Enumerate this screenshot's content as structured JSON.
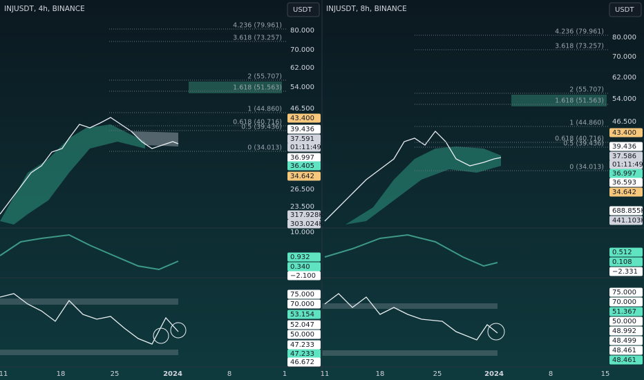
{
  "panels": [
    {
      "title": "INJUSDT, 4h, BINANCE",
      "currency": "USDT",
      "fib_levels": [
        "4.236 (79.961)",
        "3.618 (73.257)",
        "2 (55.707)",
        "1.618 (51.563)",
        "1 (44.860)",
        "0.618 (40.716)",
        "0.5 (39.436)",
        "0 (34.013)"
      ],
      "price_labels": [
        {
          "text": "80.000"
        },
        {
          "text": "70.000"
        },
        {
          "text": "62.000"
        },
        {
          "text": "54.000"
        },
        {
          "text": "46.500"
        },
        {
          "text": "43.400",
          "badge": "#f7c77c"
        },
        {
          "text": "39.436",
          "badge": "#ffffff"
        },
        {
          "text": "37.591",
          "badge": "#d1d4dc"
        },
        {
          "text": "01:11:49",
          "badge": "#d1d4dc"
        },
        {
          "text": "36.997",
          "badge": "#ffffff"
        },
        {
          "text": "36.405",
          "badge": "#5fe3c0"
        },
        {
          "text": "34.642",
          "badge": "#f7c77c"
        },
        {
          "text": "26.500"
        },
        {
          "text": "23.500"
        },
        {
          "text": "317.928K",
          "badge": "#d1d4dc"
        },
        {
          "text": "303.024K",
          "badge": "#d1d4dc"
        }
      ],
      "osc_labels": [
        {
          "text": "10.000"
        },
        {
          "text": "0.932",
          "badge": "#5fe3c0"
        },
        {
          "text": "0.340",
          "badge": "#5fe3c0"
        },
        {
          "text": "−2.100",
          "badge": "#ffffff"
        }
      ],
      "rsi_labels": [
        {
          "text": "75.000",
          "badge": "#ffffff"
        },
        {
          "text": "70.000",
          "badge": "#ffffff"
        },
        {
          "text": "53.154",
          "badge": "#5fe3c0"
        },
        {
          "text": "52.047",
          "badge": "#ffffff"
        },
        {
          "text": "50.000",
          "badge": "#ffffff"
        },
        {
          "text": "47.233",
          "badge": "#ffffff"
        },
        {
          "text": "47.233",
          "badge": "#5fe3c0"
        },
        {
          "text": "46.672",
          "badge": "#ffffff"
        }
      ],
      "time_labels": [
        "11",
        "18",
        "25",
        "2024",
        "8",
        "1"
      ]
    },
    {
      "title": "INJUSDT, 8h, BINANCE",
      "currency": "USDT",
      "fib_levels": [
        "4.236 (79.961)",
        "3.618 (73.257)",
        "2 (55.707)",
        "1.618 (51.563)",
        "1 (44.860)",
        "0.618 (40.716)",
        "0.5 (39.436)",
        "0 (34.013)"
      ],
      "price_labels": [
        {
          "text": "80.000"
        },
        {
          "text": "70.000"
        },
        {
          "text": "62.000"
        },
        {
          "text": "54.000"
        },
        {
          "text": "46.500"
        },
        {
          "text": "43.400",
          "badge": "#f7c77c"
        },
        {
          "text": "39.436",
          "badge": "#ffffff"
        },
        {
          "text": "37.586",
          "badge": "#d1d4dc"
        },
        {
          "text": "01:11:49",
          "badge": "#d1d4dc"
        },
        {
          "text": "36.997",
          "badge": "#5fe3c0"
        },
        {
          "text": "36.593",
          "badge": "#ffffff"
        },
        {
          "text": "34.642",
          "badge": "#f7c77c"
        },
        {
          "text": "688.855K",
          "badge": "#ffffff"
        },
        {
          "text": "441.103K",
          "badge": "#d1d4dc"
        }
      ],
      "osc_labels": [
        {
          "text": "0.512",
          "badge": "#5fe3c0"
        },
        {
          "text": "0.108",
          "badge": "#5fe3c0"
        },
        {
          "text": "−2.331",
          "badge": "#ffffff"
        }
      ],
      "rsi_labels": [
        {
          "text": "75.000",
          "badge": "#ffffff"
        },
        {
          "text": "70.000",
          "badge": "#ffffff"
        },
        {
          "text": "51.367",
          "badge": "#5fe3c0"
        },
        {
          "text": "50.000",
          "badge": "#ffffff"
        },
        {
          "text": "48.992",
          "badge": "#ffffff"
        },
        {
          "text": "48.499",
          "badge": "#ffffff"
        },
        {
          "text": "48.461",
          "badge": "#ffffff"
        },
        {
          "text": "48.461",
          "badge": "#5fe3c0"
        }
      ],
      "time_labels": [
        "11",
        "18",
        "25",
        "2024",
        "8",
        "15"
      ]
    }
  ]
}
